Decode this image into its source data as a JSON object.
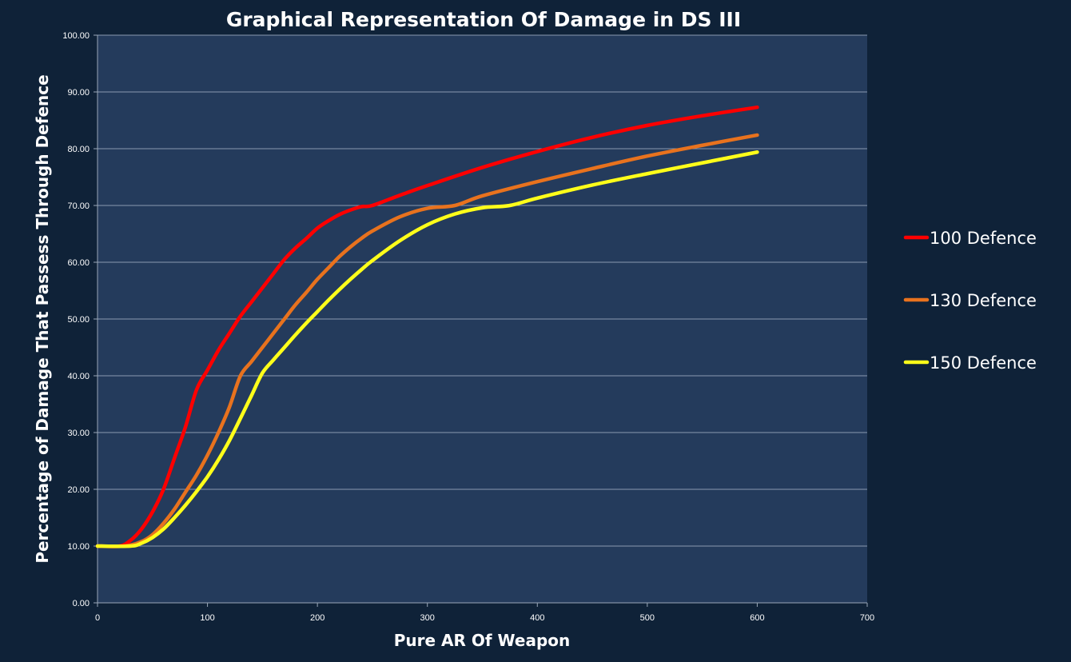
{
  "chart_data": {
    "type": "line",
    "title": "Graphical Representation Of Damage in DS III",
    "xlabel": "Pure AR Of Weapon",
    "ylabel": "Percentage of Damage That Passess Through Defence",
    "xlim": [
      0,
      700
    ],
    "ylim": [
      0,
      100
    ],
    "x_ticks": [
      "0",
      "100",
      "200",
      "300",
      "400",
      "500",
      "600",
      "700"
    ],
    "y_ticks": [
      "0.00",
      "10.00",
      "20.00",
      "30.00",
      "40.00",
      "50.00",
      "60.00",
      "70.00",
      "80.00",
      "90.00",
      "100.00"
    ],
    "grid": true,
    "legend_position": "right",
    "plot_background": "#243b5c",
    "series": [
      {
        "name": "100 Defence",
        "color": "#ff0000",
        "x": [
          0,
          20,
          30,
          40,
          50,
          60,
          70,
          80,
          90,
          100,
          110,
          120,
          130,
          140,
          150,
          160,
          170,
          180,
          190,
          200,
          210,
          220,
          230,
          240,
          250,
          275,
          300,
          350,
          400,
          450,
          500,
          550,
          600
        ],
        "y": [
          10,
          10,
          11,
          13,
          16,
          20,
          25.5,
          31,
          37.5,
          41,
          44.5,
          47.5,
          50.5,
          53,
          55.5,
          58,
          60.5,
          62.5,
          64.2,
          66,
          67.3,
          68.4,
          69.2,
          69.8,
          70,
          71.8,
          73.5,
          76.7,
          79.5,
          82,
          84.1,
          85.8,
          87.3
        ]
      },
      {
        "name": "130 Defence",
        "color": "#e8721e",
        "x": [
          0,
          25,
          40,
          50,
          60,
          70,
          80,
          90,
          100,
          110,
          120,
          130,
          140,
          150,
          160,
          170,
          180,
          190,
          200,
          210,
          220,
          230,
          240,
          250,
          275,
          300,
          325,
          350,
          400,
          450,
          500,
          550,
          600
        ],
        "y": [
          10,
          10,
          10.8,
          12,
          14,
          16.5,
          19.5,
          22.5,
          26,
          30,
          34.5,
          40,
          42.5,
          45,
          47.5,
          50,
          52.5,
          54.7,
          57,
          59,
          61,
          62.7,
          64.2,
          65.5,
          68,
          69.5,
          70,
          71.7,
          74.2,
          76.5,
          78.7,
          80.6,
          82.4
        ]
      },
      {
        "name": "150 Defence",
        "color": "#ffff1a",
        "x": [
          0,
          30,
          40,
          50,
          60,
          70,
          80,
          90,
          100,
          110,
          120,
          130,
          140,
          150,
          160,
          170,
          180,
          190,
          200,
          210,
          220,
          230,
          240,
          250,
          275,
          300,
          325,
          350,
          375,
          400,
          450,
          500,
          550,
          600
        ],
        "y": [
          10,
          10,
          10.5,
          11.5,
          13,
          15,
          17.2,
          19.6,
          22.2,
          25.2,
          28.6,
          32.5,
          36.5,
          40.5,
          42.8,
          45,
          47.2,
          49.3,
          51.3,
          53.3,
          55.2,
          57,
          58.7,
          60.3,
          63.8,
          66.6,
          68.5,
          69.6,
          70,
          71.3,
          73.6,
          75.6,
          77.5,
          79.4
        ]
      }
    ]
  }
}
